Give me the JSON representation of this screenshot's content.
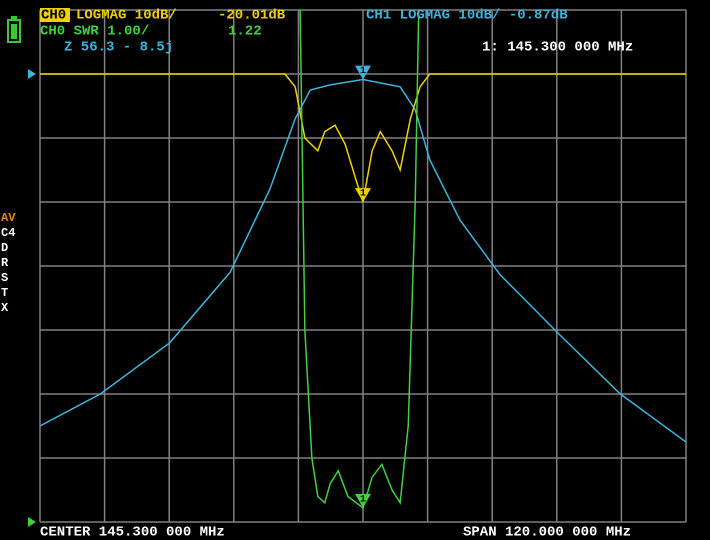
{
  "screen": {
    "header": {
      "ch0_tag": "CH0",
      "ch0_format": "LOGMAG 10dB/",
      "ch0_value": "-20.01dB",
      "ch1_line": "CH1 LOGMAG 10dB/ -0.87dB",
      "ch0_swr": "CH0 SWR 1.00/",
      "ch0_swr_value": "1.22",
      "impedance": "Z 56.3 - 8.5j",
      "marker_freq": "1: 145.300 000 MHz"
    },
    "side": [
      "AV",
      "C4",
      "D",
      "R",
      "S",
      "T",
      "X"
    ],
    "footer": {
      "center": "CENTER 145.300 000 MHz",
      "span": "SPAN 120.000 000 MHz"
    }
  },
  "chart_data": {
    "type": "line",
    "xlim": [
      85.3,
      205.3
    ],
    "xticks": [
      85.3,
      97.3,
      109.3,
      121.3,
      133.3,
      145.3,
      157.3,
      169.3,
      181.3,
      193.3,
      205.3
    ],
    "ylim": [
      -70,
      10
    ],
    "yticks": [
      10,
      0,
      -10,
      -20,
      -30,
      -40,
      -50,
      -60,
      -70
    ],
    "y2lim": [
      1,
      9
    ],
    "grid": true,
    "markers": [
      {
        "label": "1",
        "x": 145.3
      }
    ],
    "series": [
      {
        "name": "CH1",
        "color": "#3cb4dc",
        "x": [
          85.3,
          96.5,
          109.4,
          120.6,
          128.0,
          132.7,
          135.5,
          139.2,
          145.3,
          152.2,
          155.0,
          157.7,
          163.3,
          170.8,
          181.9,
          193.1,
          205.3
        ],
        "values": [
          -55,
          -50,
          -42,
          -31,
          -18,
          -7,
          -2.5,
          -1.7,
          -0.87,
          -2,
          -5.6,
          -13.4,
          -22.8,
          -31.4,
          -40.8,
          -50,
          -57.5
        ]
      },
      {
        "name": "CH0",
        "color": "#f0d000",
        "x": [
          85.3,
          130.8,
          132.7,
          134.5,
          136.9,
          138.2,
          140.1,
          142.0,
          143.8,
          145.3,
          147.0,
          148.5,
          150.7,
          152.2,
          154.1,
          155.9,
          157.7,
          205.3
        ],
        "values": [
          0,
          0,
          -2,
          -10,
          -12,
          -9,
          -8,
          -11,
          -16,
          -20.01,
          -12,
          -9,
          -12,
          -15,
          -7,
          -2,
          0,
          0
        ]
      },
      {
        "name": "CH0 SWR",
        "color": "#40d040",
        "axis": "y2",
        "x": [
          133.1,
          134.5,
          135.8,
          136.9,
          138.2,
          139.2,
          140.7,
          142.5,
          145.3,
          147.0,
          148.8,
          150.7,
          152.2,
          153.7,
          155.0,
          156.3
        ],
        "values": [
          12,
          4,
          2,
          1.4,
          1.3,
          1.6,
          1.8,
          1.4,
          1.22,
          1.7,
          1.9,
          1.5,
          1.3,
          2.5,
          6,
          12
        ]
      }
    ]
  }
}
